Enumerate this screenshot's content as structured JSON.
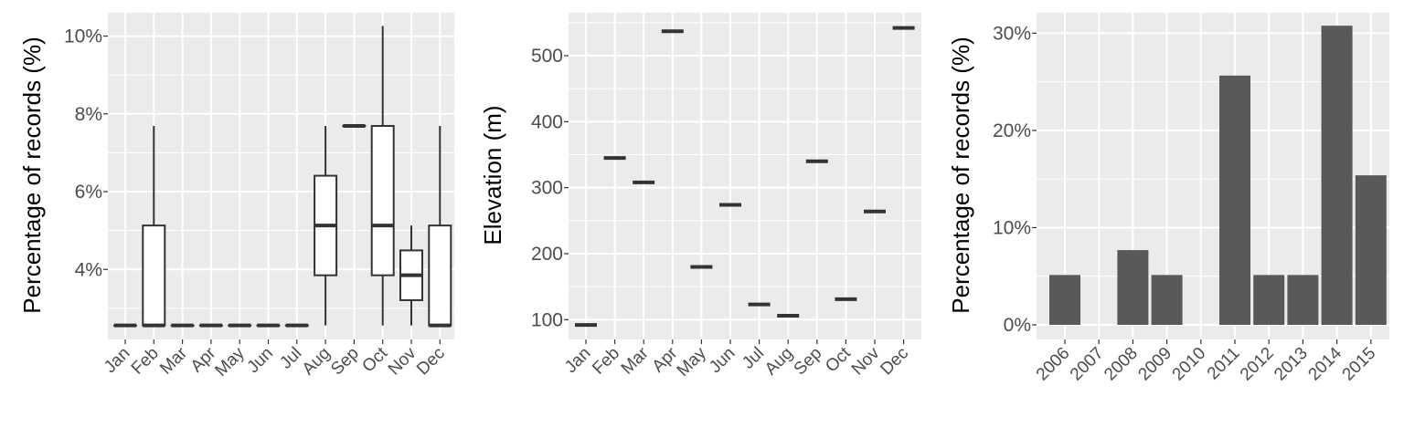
{
  "colors": {
    "panel": "#EBEBEB",
    "grid": "#FFFFFF",
    "bar": "#595959",
    "stroke": "#333333"
  },
  "chart_data": [
    {
      "type": "boxplot",
      "ylabel": "Percentage of records (%)",
      "xlabel": "",
      "ylim": [
        2.2,
        10.6
      ],
      "yticks": [
        4,
        6,
        8,
        10
      ],
      "ytick_labels": [
        "4%",
        "6%",
        "8%",
        "10%"
      ],
      "categories": [
        "Jan",
        "Feb",
        "Mar",
        "Apr",
        "May",
        "Jun",
        "Jul",
        "Aug",
        "Sep",
        "Oct",
        "Nov",
        "Dec"
      ],
      "boxes": [
        {
          "min": 2.56,
          "q1": 2.56,
          "median": 2.56,
          "q3": 2.56,
          "max": 2.56
        },
        {
          "min": 2.56,
          "q1": 2.56,
          "median": 2.56,
          "q3": 5.13,
          "max": 7.69
        },
        {
          "min": 2.56,
          "q1": 2.56,
          "median": 2.56,
          "q3": 2.56,
          "max": 2.56
        },
        {
          "min": 2.56,
          "q1": 2.56,
          "median": 2.56,
          "q3": 2.56,
          "max": 2.56
        },
        {
          "min": 2.56,
          "q1": 2.56,
          "median": 2.56,
          "q3": 2.56,
          "max": 2.56
        },
        {
          "min": 2.56,
          "q1": 2.56,
          "median": 2.56,
          "q3": 2.56,
          "max": 2.56
        },
        {
          "min": 2.56,
          "q1": 2.56,
          "median": 2.56,
          "q3": 2.56,
          "max": 2.56
        },
        {
          "min": 2.56,
          "q1": 3.85,
          "median": 5.13,
          "q3": 6.41,
          "max": 7.69
        },
        {
          "min": 7.69,
          "q1": 7.69,
          "median": 7.69,
          "q3": 7.69,
          "max": 7.69
        },
        {
          "min": 2.56,
          "q1": 3.85,
          "median": 5.13,
          "q3": 7.69,
          "max": 10.26
        },
        {
          "min": 2.56,
          "q1": 3.21,
          "median": 3.85,
          "q3": 4.49,
          "max": 5.13
        },
        {
          "min": 2.56,
          "q1": 2.56,
          "median": 2.56,
          "q3": 5.13,
          "max": 7.69
        }
      ],
      "grid": true
    },
    {
      "type": "boxplot",
      "ylabel": "Elevation (m)",
      "xlabel": "",
      "ylim": [
        70,
        565
      ],
      "yticks": [
        100,
        200,
        300,
        400,
        500
      ],
      "ytick_labels": [
        "100",
        "200",
        "300",
        "400",
        "500"
      ],
      "categories": [
        "Jan",
        "Feb",
        "Mar",
        "Apr",
        "May",
        "Jun",
        "Jul",
        "Aug",
        "Sep",
        "Oct",
        "Nov",
        "Dec"
      ],
      "values": [
        92,
        345,
        308,
        537,
        180,
        274,
        123,
        106,
        340,
        131,
        264,
        542
      ],
      "grid": true
    },
    {
      "type": "bar",
      "ylabel": "Percentage of records (%)",
      "xlabel": "",
      "ylim": [
        -1.5,
        32.1
      ],
      "yticks": [
        0,
        10,
        20,
        30
      ],
      "ytick_labels": [
        "0%",
        "10%",
        "20%",
        "30%"
      ],
      "categories": [
        "2006",
        "2007",
        "2008",
        "2009",
        "2010",
        "2011",
        "2012",
        "2013",
        "2014",
        "2015"
      ],
      "values": [
        5.13,
        0,
        7.69,
        5.13,
        0,
        25.64,
        5.13,
        5.13,
        30.77,
        15.38
      ],
      "grid": true
    }
  ]
}
